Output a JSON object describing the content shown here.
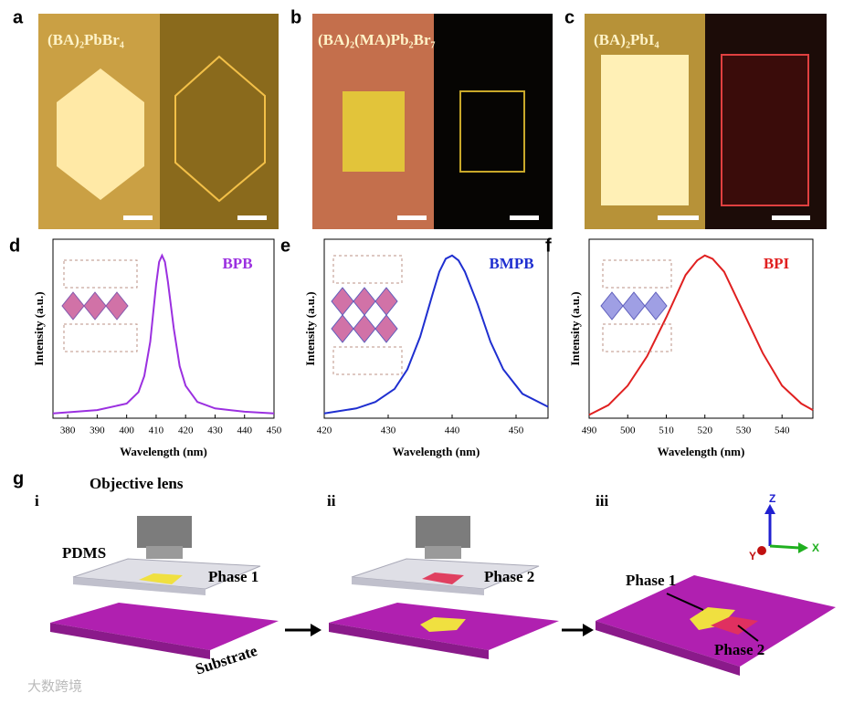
{
  "panels": {
    "a": {
      "letter": "a",
      "title": "(BA)₂PbBr₄"
    },
    "b": {
      "letter": "b",
      "title": "(BA)₂(MA)Pb₂Br₇"
    },
    "c": {
      "letter": "c",
      "title": "(BA)₂PbI₄"
    }
  },
  "chart_data": [
    {
      "type": "line",
      "panel": "d",
      "xlabel": "Wavelength (nm)",
      "ylabel": "Intensity (a.u.)",
      "x": [
        375,
        390,
        400,
        404,
        406,
        408,
        410,
        411,
        412,
        413,
        414,
        416,
        418,
        420,
        424,
        430,
        440,
        450
      ],
      "series": [
        {
          "name": "BPB",
          "color": "#9b30e0",
          "values": [
            0.03,
            0.05,
            0.09,
            0.16,
            0.26,
            0.47,
            0.82,
            0.96,
            1.0,
            0.96,
            0.84,
            0.55,
            0.32,
            0.2,
            0.1,
            0.06,
            0.04,
            0.03
          ]
        }
      ],
      "xlim": [
        375,
        450
      ],
      "xticks": [
        380,
        390,
        400,
        410,
        420,
        430,
        440,
        450
      ],
      "ylim": [
        0,
        1.1
      ]
    },
    {
      "type": "line",
      "panel": "e",
      "xlabel": "Wavelength (nm)",
      "ylabel": "Intensity (a.u.)",
      "x": [
        420,
        425,
        428,
        431,
        433,
        435,
        437,
        438,
        439,
        440,
        441,
        442,
        444,
        446,
        448,
        451,
        455
      ],
      "series": [
        {
          "name": "BMPB",
          "color": "#1f2fd0",
          "values": [
            0.03,
            0.06,
            0.1,
            0.18,
            0.3,
            0.5,
            0.77,
            0.9,
            0.98,
            1.0,
            0.97,
            0.9,
            0.7,
            0.47,
            0.3,
            0.15,
            0.07
          ]
        }
      ],
      "xlim": [
        420,
        455
      ],
      "xticks": [
        420,
        430,
        440,
        450
      ],
      "ylim": [
        0,
        1.1
      ]
    },
    {
      "type": "line",
      "panel": "f",
      "xlabel": "Wavelength (nm)",
      "ylabel": "Intensity (a.u.)",
      "x": [
        490,
        495,
        500,
        505,
        510,
        515,
        518,
        520,
        522,
        525,
        530,
        535,
        540,
        545,
        548
      ],
      "series": [
        {
          "name": "BPI",
          "color": "#e02020",
          "values": [
            0.02,
            0.08,
            0.2,
            0.38,
            0.62,
            0.88,
            0.97,
            1.0,
            0.98,
            0.9,
            0.65,
            0.4,
            0.2,
            0.09,
            0.05
          ]
        }
      ],
      "xlim": [
        490,
        548
      ],
      "xticks": [
        490,
        500,
        510,
        520,
        530,
        540
      ],
      "ylim": [
        0,
        1.1
      ]
    }
  ],
  "panel_g": {
    "letter": "g",
    "steps": [
      "i",
      "ii",
      "iii"
    ],
    "objective": "Objective lens",
    "pdms": "PDMS",
    "phase_i": "Phase 1",
    "phase_ii": "Phase 2",
    "phase_iii_1": "Phase 1",
    "phase_iii_2": "Phase 2",
    "substrate": "Substrate",
    "axes": {
      "z": "Z",
      "y": "Y",
      "x": "X"
    }
  },
  "watermark": "大数跨境"
}
